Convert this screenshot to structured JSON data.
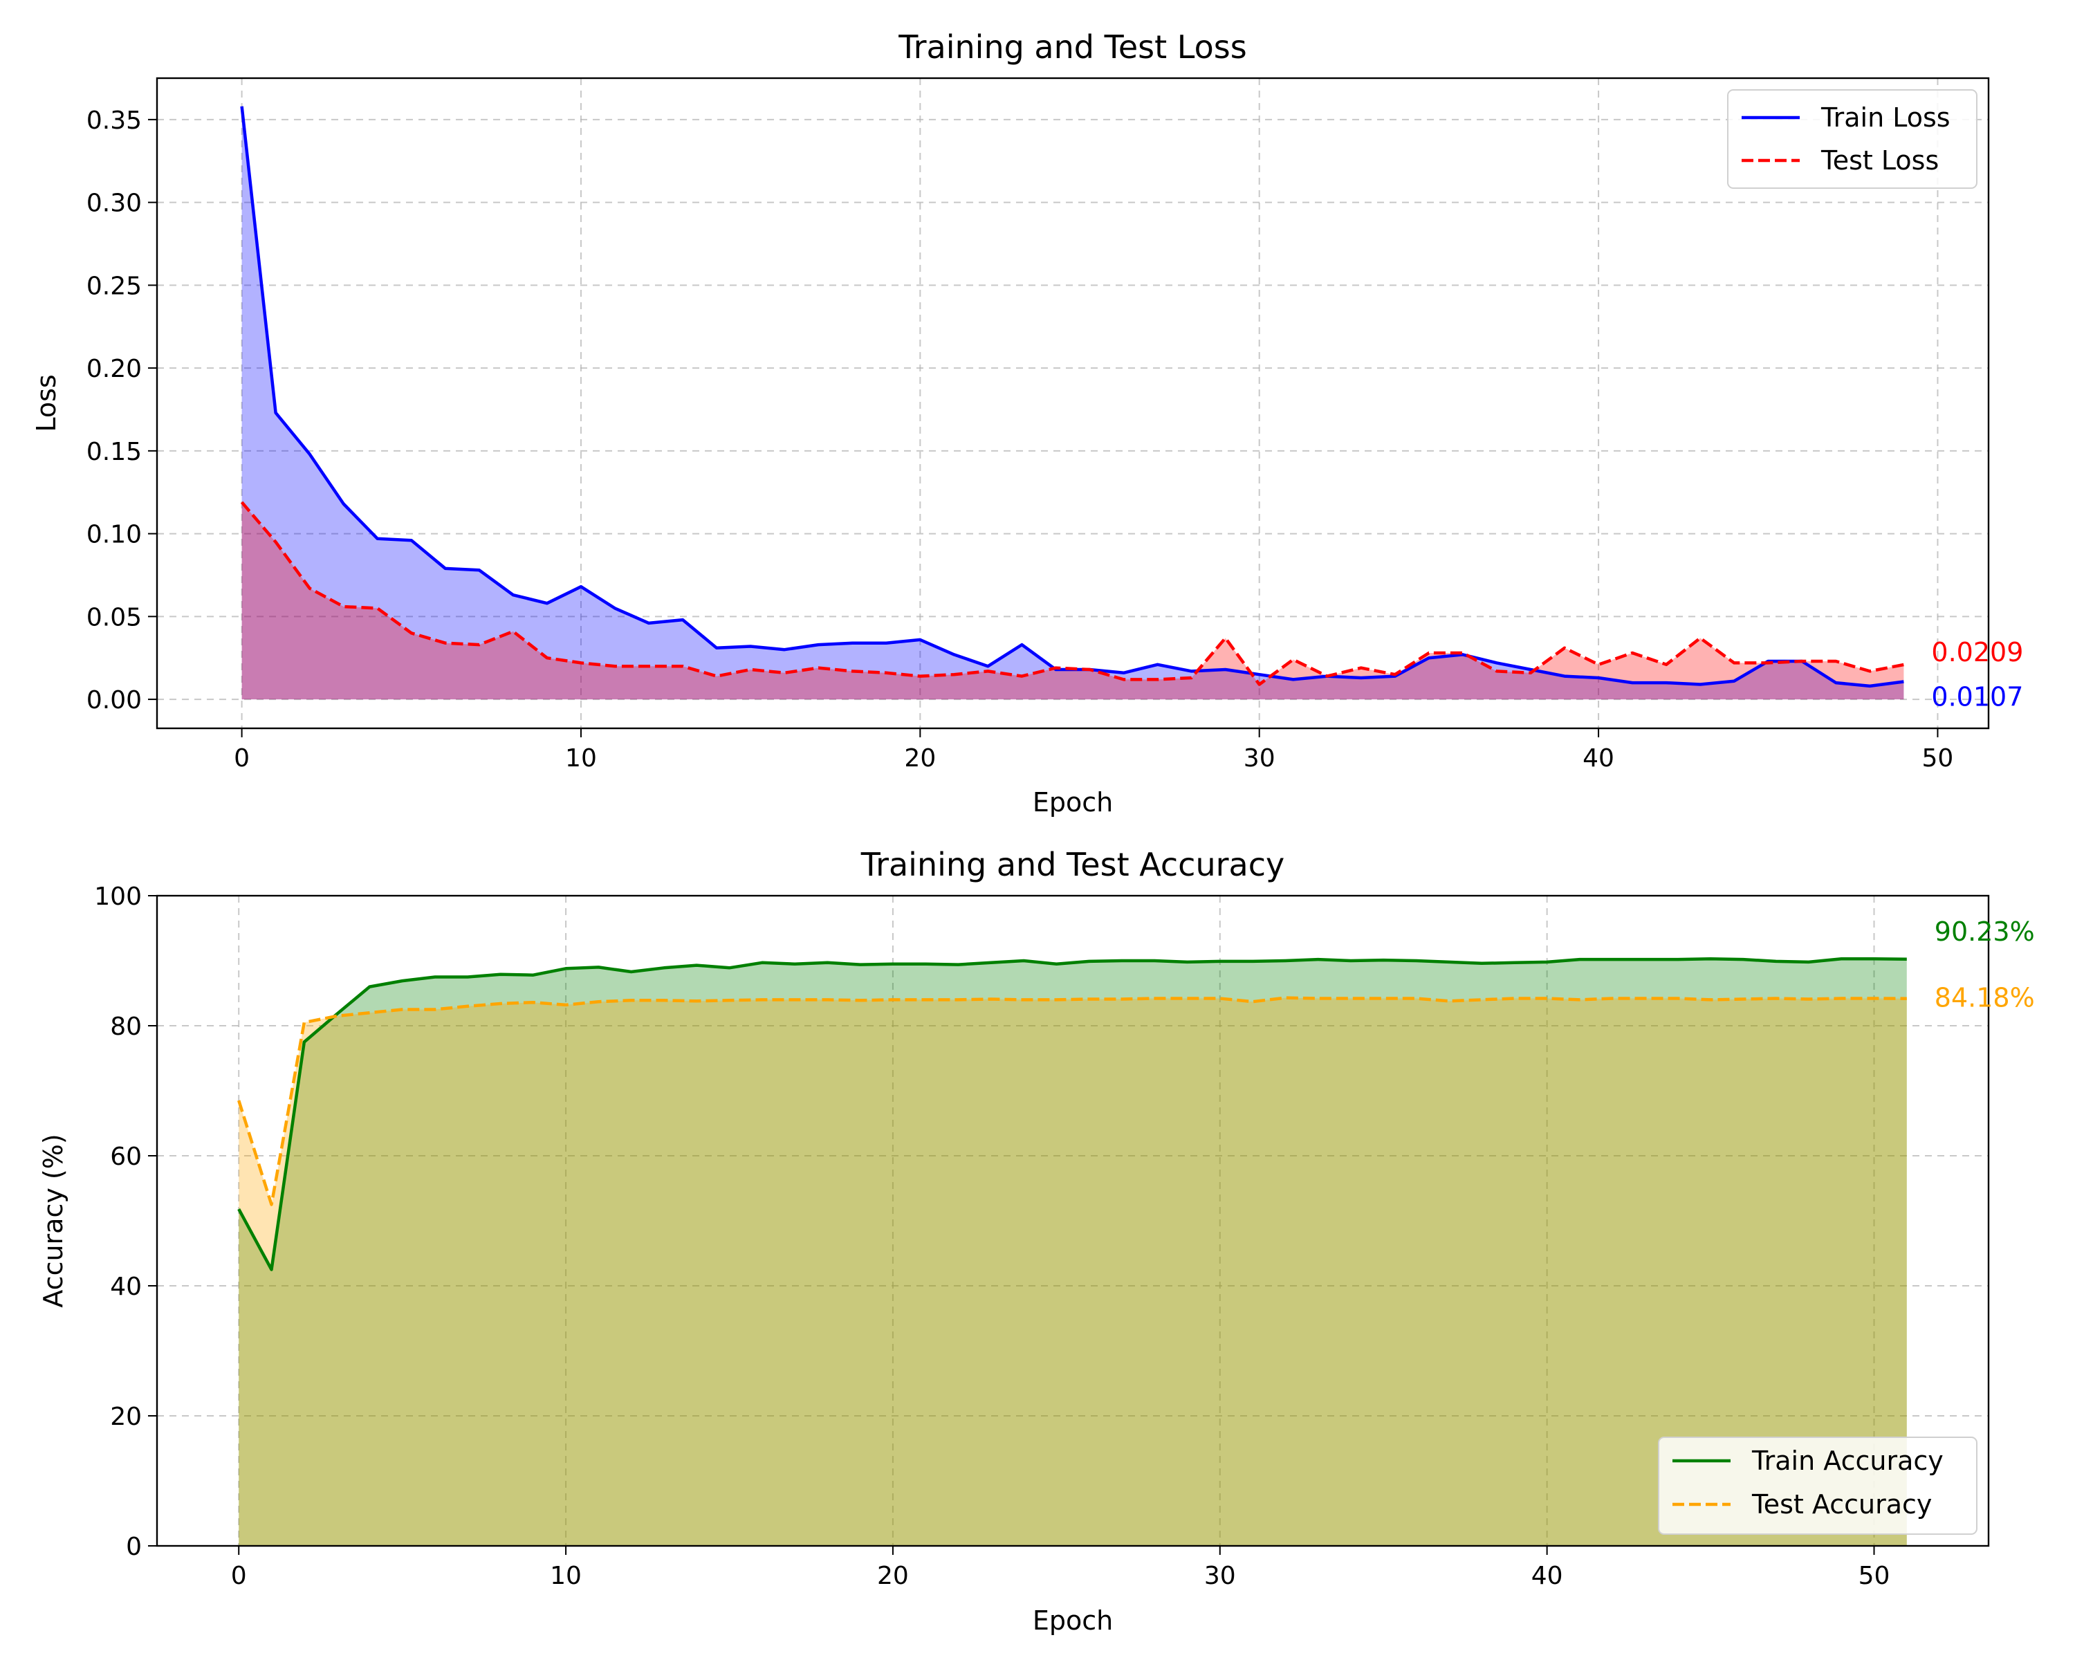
{
  "colors": {
    "train_loss": "#0000ff",
    "test_loss": "#ff0000",
    "train_acc": "#008000",
    "test_acc": "#ffa500",
    "grid": "#b0b0b0"
  },
  "chart_data": [
    {
      "type": "area",
      "title": "Training and Test Loss",
      "xlabel": "Epoch",
      "ylabel": "Loss",
      "xlim": [
        -2.5,
        51.5
      ],
      "ylim": [
        -0.0175,
        0.375
      ],
      "xticks": [
        0,
        10,
        20,
        30,
        40,
        50
      ],
      "yticks": [
        0.0,
        0.05,
        0.1,
        0.15,
        0.2,
        0.25,
        0.3,
        0.35
      ],
      "ytick_labels": [
        "0.00",
        "0.05",
        "0.10",
        "0.15",
        "0.20",
        "0.25",
        "0.30",
        "0.35"
      ],
      "grid": true,
      "legend_position": "upper right",
      "x": [
        0,
        1,
        2,
        3,
        4,
        5,
        6,
        7,
        8,
        9,
        10,
        11,
        12,
        13,
        14,
        15,
        16,
        17,
        18,
        19,
        20,
        21,
        22,
        23,
        24,
        25,
        26,
        27,
        28,
        29,
        30,
        31,
        32,
        33,
        34,
        35,
        36,
        37,
        38,
        39,
        40,
        41,
        42,
        43,
        44,
        45,
        46,
        47,
        48,
        49
      ],
      "series": [
        {
          "name": "Train Loss",
          "color": "#0000ff",
          "style": "solid",
          "values": [
            0.358,
            0.173,
            0.148,
            0.118,
            0.097,
            0.096,
            0.079,
            0.078,
            0.063,
            0.058,
            0.068,
            0.055,
            0.046,
            0.048,
            0.031,
            0.032,
            0.03,
            0.033,
            0.034,
            0.034,
            0.036,
            0.027,
            0.02,
            0.033,
            0.018,
            0.018,
            0.016,
            0.021,
            0.017,
            0.018,
            0.015,
            0.012,
            0.014,
            0.013,
            0.014,
            0.025,
            0.027,
            0.022,
            0.018,
            0.014,
            0.013,
            0.01,
            0.01,
            0.009,
            0.011,
            0.023,
            0.023,
            0.01,
            0.008,
            0.0107
          ]
        },
        {
          "name": "Test Loss",
          "color": "#ff0000",
          "style": "dashed",
          "values": [
            0.119,
            0.095,
            0.067,
            0.056,
            0.055,
            0.04,
            0.034,
            0.033,
            0.041,
            0.025,
            0.022,
            0.02,
            0.02,
            0.02,
            0.014,
            0.018,
            0.016,
            0.019,
            0.017,
            0.016,
            0.014,
            0.015,
            0.017,
            0.014,
            0.019,
            0.018,
            0.012,
            0.012,
            0.013,
            0.037,
            0.009,
            0.024,
            0.014,
            0.019,
            0.015,
            0.028,
            0.028,
            0.017,
            0.016,
            0.031,
            0.021,
            0.028,
            0.021,
            0.037,
            0.022,
            0.022,
            0.023,
            0.023,
            0.017,
            0.0209
          ]
        }
      ],
      "annotations": [
        {
          "text": "0.0209",
          "color": "#ff0000"
        },
        {
          "text": "0.0107",
          "color": "#0000ff"
        }
      ]
    },
    {
      "type": "area",
      "title": "Training and Test Accuracy",
      "xlabel": "Epoch",
      "ylabel": "Accuracy (%)",
      "xlim": [
        -2.5,
        53.5
      ],
      "ylim": [
        0,
        100
      ],
      "xticks": [
        0,
        10,
        20,
        30,
        40,
        50
      ],
      "yticks": [
        0,
        20,
        40,
        60,
        80,
        100
      ],
      "ytick_labels": [
        "0",
        "20",
        "40",
        "60",
        "80",
        "100"
      ],
      "grid": true,
      "legend_position": "lower right",
      "x": [
        0,
        1,
        2,
        3,
        4,
        5,
        6,
        7,
        8,
        9,
        10,
        11,
        12,
        13,
        14,
        15,
        16,
        17,
        18,
        19,
        20,
        21,
        22,
        23,
        24,
        25,
        26,
        27,
        28,
        29,
        30,
        31,
        32,
        33,
        34,
        35,
        36,
        37,
        38,
        39,
        40,
        41,
        42,
        43,
        44,
        45,
        46,
        47,
        48,
        49,
        50,
        51
      ],
      "series": [
        {
          "name": "Train Accuracy",
          "color": "#008000",
          "style": "solid",
          "values": [
            51.8,
            42.5,
            77.5,
            81.8,
            86.0,
            86.9,
            87.5,
            87.5,
            87.9,
            87.8,
            88.8,
            89.0,
            88.3,
            88.9,
            89.3,
            88.9,
            89.7,
            89.5,
            89.7,
            89.4,
            89.5,
            89.5,
            89.4,
            89.7,
            90.0,
            89.5,
            89.9,
            90.0,
            90.0,
            89.8,
            89.9,
            89.9,
            90.0,
            90.2,
            90.0,
            90.1,
            90.0,
            89.8,
            89.6,
            89.7,
            89.8,
            90.2,
            90.2,
            90.2,
            90.2,
            90.3,
            90.2,
            89.9,
            89.8,
            90.3,
            90.3,
            90.23
          ]
        },
        {
          "name": "Test Accuracy",
          "color": "#ffa500",
          "style": "dashed",
          "values": [
            68.5,
            52.5,
            80.5,
            81.5,
            82.0,
            82.5,
            82.5,
            83.0,
            83.4,
            83.6,
            83.2,
            83.7,
            83.9,
            83.9,
            83.8,
            83.9,
            84.0,
            84.0,
            84.0,
            83.9,
            84.0,
            84.0,
            84.0,
            84.1,
            84.0,
            84.0,
            84.1,
            84.1,
            84.2,
            84.2,
            84.2,
            83.7,
            84.3,
            84.2,
            84.2,
            84.2,
            84.2,
            83.8,
            84.0,
            84.2,
            84.2,
            84.0,
            84.2,
            84.2,
            84.2,
            84.0,
            84.1,
            84.2,
            84.1,
            84.2,
            84.2,
            84.18
          ]
        }
      ],
      "annotations": [
        {
          "text": "90.23%",
          "color": "#008000"
        },
        {
          "text": "84.18%",
          "color": "#ffa500"
        }
      ]
    }
  ]
}
